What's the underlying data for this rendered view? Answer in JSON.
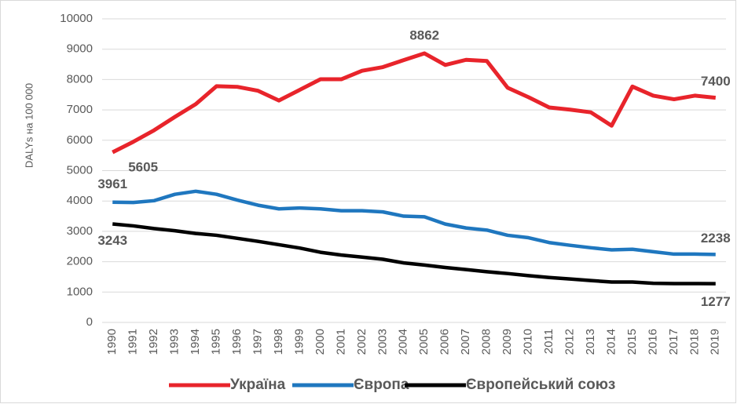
{
  "chart_data": {
    "type": "line",
    "y_label": "DALYs на 100 000",
    "categories": [
      "1990",
      "1991",
      "1992",
      "1993",
      "1994",
      "1995",
      "1996",
      "1997",
      "1998",
      "1999",
      "2000",
      "2001",
      "2002",
      "2003",
      "2004",
      "2005",
      "2006",
      "2007",
      "2008",
      "2009",
      "2010",
      "2011",
      "2012",
      "2013",
      "2014",
      "2015",
      "2016",
      "2017",
      "2018",
      "2019"
    ],
    "series": [
      {
        "name": "Україна",
        "color": "#e8242b",
        "label_indices": [
          0,
          15,
          29
        ],
        "values": [
          5605,
          5950,
          6330,
          6770,
          7190,
          7780,
          7760,
          7630,
          7310,
          7660,
          8010,
          8010,
          8290,
          8410,
          8640,
          8862,
          8480,
          8650,
          8610,
          7730,
          7420,
          7080,
          7010,
          6920,
          6480,
          7770,
          7470,
          7350,
          7470,
          7400
        ]
      },
      {
        "name": "Європа",
        "color": "#1f77bf",
        "label_indices": [
          0,
          29
        ],
        "values": [
          3961,
          3950,
          4010,
          4220,
          4320,
          4220,
          4030,
          3860,
          3740,
          3770,
          3740,
          3680,
          3680,
          3640,
          3500,
          3480,
          3240,
          3110,
          3040,
          2870,
          2790,
          2630,
          2540,
          2460,
          2390,
          2410,
          2330,
          2250,
          2250,
          2238
        ]
      },
      {
        "name": "Європейський союз",
        "color": "#000000",
        "label_indices": [
          0,
          29
        ],
        "values": [
          3243,
          3180,
          3090,
          3020,
          2930,
          2870,
          2770,
          2670,
          2560,
          2450,
          2310,
          2220,
          2150,
          2080,
          1960,
          1890,
          1810,
          1740,
          1670,
          1610,
          1540,
          1480,
          1430,
          1380,
          1330,
          1330,
          1290,
          1280,
          1280,
          1277
        ]
      }
    ],
    "ylim": [
      0,
      10000
    ],
    "yticks": [
      0,
      1000,
      2000,
      3000,
      4000,
      5000,
      6000,
      7000,
      8000,
      9000,
      10000
    ],
    "grid": true,
    "legend": "bottom"
  }
}
